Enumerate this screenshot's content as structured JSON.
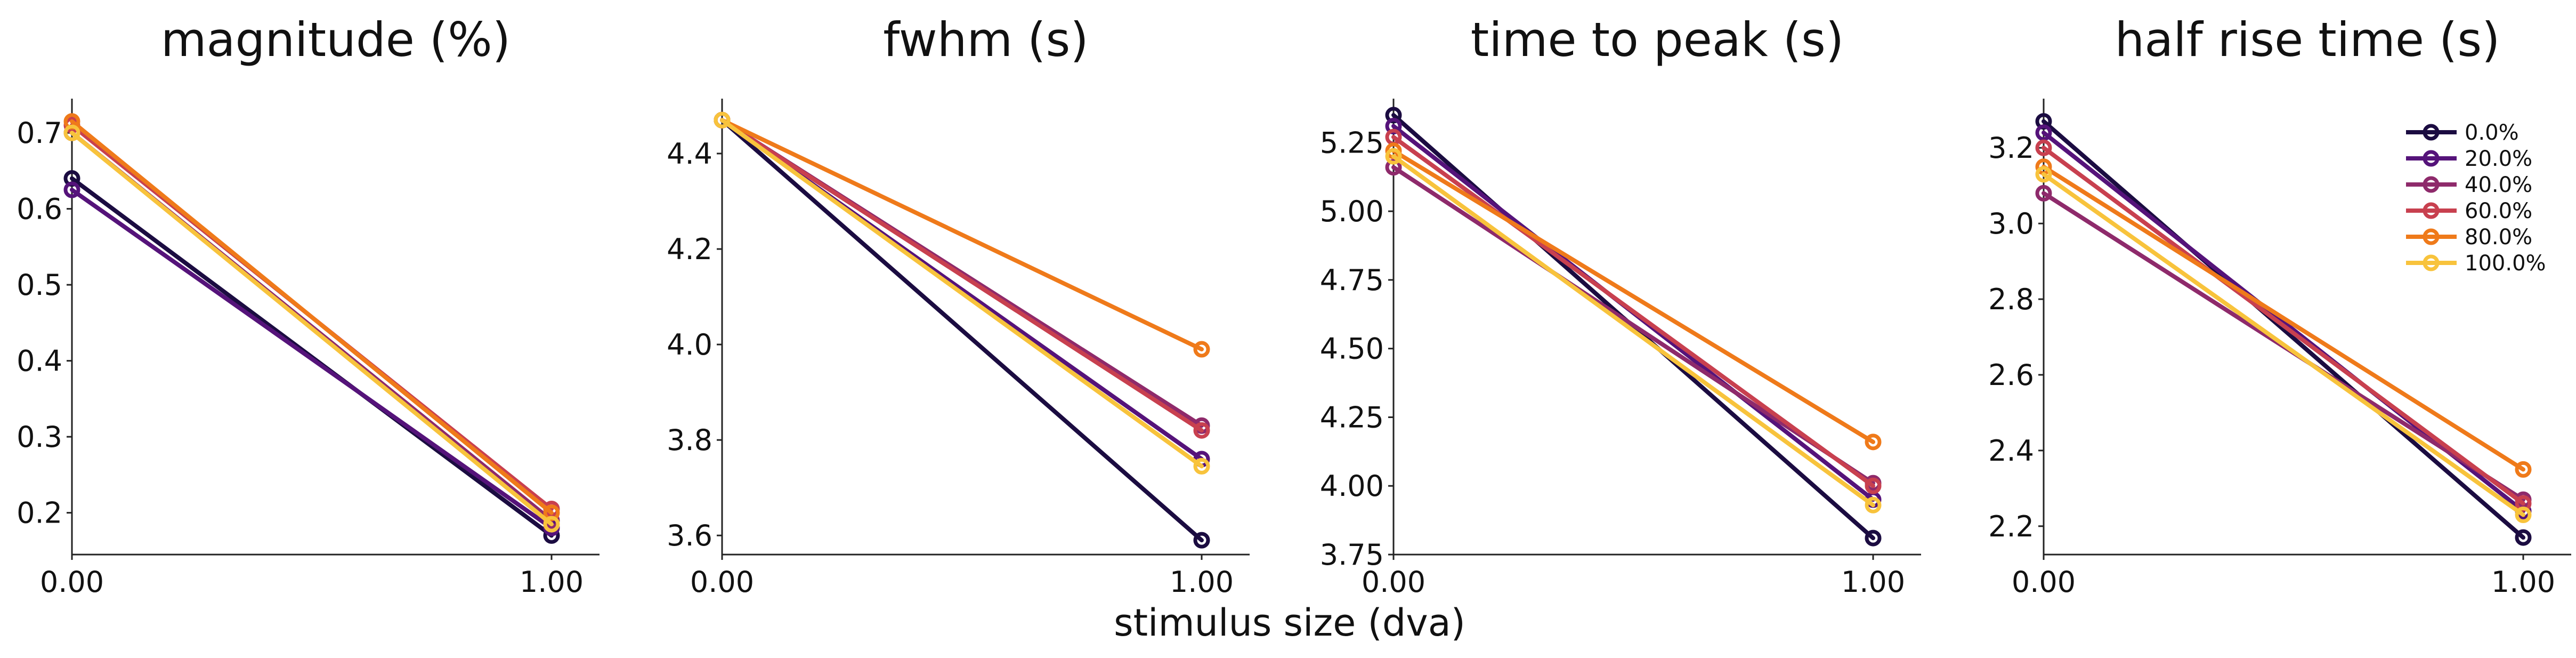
{
  "xlabel": "stimulus size (dva)",
  "legend": {
    "entries": [
      "0.0%",
      "20.0%",
      "40.0%",
      "60.0%",
      "80.0%",
      "100.0%"
    ],
    "placement": "top-right of last panel"
  },
  "series_colors": [
    "#1b0c41",
    "#55137a",
    "#8e2a6b",
    "#c8404f",
    "#ef7a1a",
    "#f8c33c"
  ],
  "chart_data": [
    {
      "type": "line",
      "title": "magnitude (%)",
      "x": [
        0,
        1
      ],
      "x_ticks": [
        "0.00",
        "1.00"
      ],
      "xlim": [
        0,
        1.1
      ],
      "y_ticks": [
        0.2,
        0.3,
        0.4,
        0.5,
        0.6,
        0.7
      ],
      "y_tick_labels": [
        "0.2",
        "0.3",
        "0.4",
        "0.5",
        "0.6",
        "0.7"
      ],
      "ylim": [
        0.145,
        0.745
      ],
      "series": [
        {
          "name": "0.0%",
          "values": [
            0.64,
            0.17
          ]
        },
        {
          "name": "20.0%",
          "values": [
            0.625,
            0.18
          ]
        },
        {
          "name": "40.0%",
          "values": [
            0.7,
            0.19
          ]
        },
        {
          "name": "60.0%",
          "values": [
            0.71,
            0.205
          ]
        },
        {
          "name": "80.0%",
          "values": [
            0.715,
            0.2
          ]
        },
        {
          "name": "100.0%",
          "values": [
            0.7,
            0.185
          ]
        }
      ]
    },
    {
      "type": "line",
      "title": "fwhm (s)",
      "x": [
        0,
        1
      ],
      "x_ticks": [
        "0.00",
        "1.00"
      ],
      "xlim": [
        0,
        1.1
      ],
      "y_ticks": [
        3.6,
        3.8,
        4.0,
        4.2,
        4.4
      ],
      "y_tick_labels": [
        "3.6",
        "3.8",
        "4.0",
        "4.2",
        "4.4"
      ],
      "ylim": [
        3.56,
        4.515
      ],
      "series": [
        {
          "name": "0.0%",
          "values": [
            4.47,
            3.59
          ]
        },
        {
          "name": "20.0%",
          "values": [
            4.47,
            3.76
          ]
        },
        {
          "name": "40.0%",
          "values": [
            4.47,
            3.83
          ]
        },
        {
          "name": "60.0%",
          "values": [
            4.47,
            3.82
          ]
        },
        {
          "name": "80.0%",
          "values": [
            4.47,
            3.99
          ]
        },
        {
          "name": "100.0%",
          "values": [
            4.47,
            3.745
          ]
        }
      ]
    },
    {
      "type": "line",
      "title": "time to peak (s)",
      "x": [
        0,
        1
      ],
      "x_ticks": [
        "0.00",
        "1.00"
      ],
      "xlim": [
        0,
        1.1
      ],
      "y_ticks": [
        3.75,
        4.0,
        4.25,
        4.5,
        4.75,
        5.0,
        5.25
      ],
      "y_tick_labels": [
        "3.75",
        "4.00",
        "4.25",
        "4.50",
        "4.75",
        "5.00",
        "5.25"
      ],
      "ylim": [
        3.75,
        5.41
      ],
      "series": [
        {
          "name": "0.0%",
          "values": [
            5.35,
            3.81
          ]
        },
        {
          "name": "20.0%",
          "values": [
            5.31,
            3.95
          ]
        },
        {
          "name": "40.0%",
          "values": [
            5.16,
            4.01
          ]
        },
        {
          "name": "60.0%",
          "values": [
            5.27,
            4.0
          ]
        },
        {
          "name": "80.0%",
          "values": [
            5.22,
            4.16
          ]
        },
        {
          "name": "100.0%",
          "values": [
            5.2,
            3.93
          ]
        }
      ]
    },
    {
      "type": "line",
      "title": "half rise time (s)",
      "x": [
        0,
        1
      ],
      "x_ticks": [
        "0.00",
        "1.00"
      ],
      "xlim": [
        0,
        1.1
      ],
      "y_ticks": [
        2.2,
        2.4,
        2.6,
        2.8,
        3.0,
        3.2
      ],
      "y_tick_labels": [
        "2.2",
        "2.4",
        "2.6",
        "2.8",
        "3.0",
        "3.2"
      ],
      "ylim": [
        2.125,
        3.33
      ],
      "series": [
        {
          "name": "0.0%",
          "values": [
            3.27,
            2.17
          ]
        },
        {
          "name": "20.0%",
          "values": [
            3.24,
            2.24
          ]
        },
        {
          "name": "40.0%",
          "values": [
            3.08,
            2.27
          ]
        },
        {
          "name": "60.0%",
          "values": [
            3.2,
            2.26
          ]
        },
        {
          "name": "80.0%",
          "values": [
            3.15,
            2.35
          ]
        },
        {
          "name": "100.0%",
          "values": [
            3.13,
            2.23
          ]
        }
      ]
    }
  ]
}
